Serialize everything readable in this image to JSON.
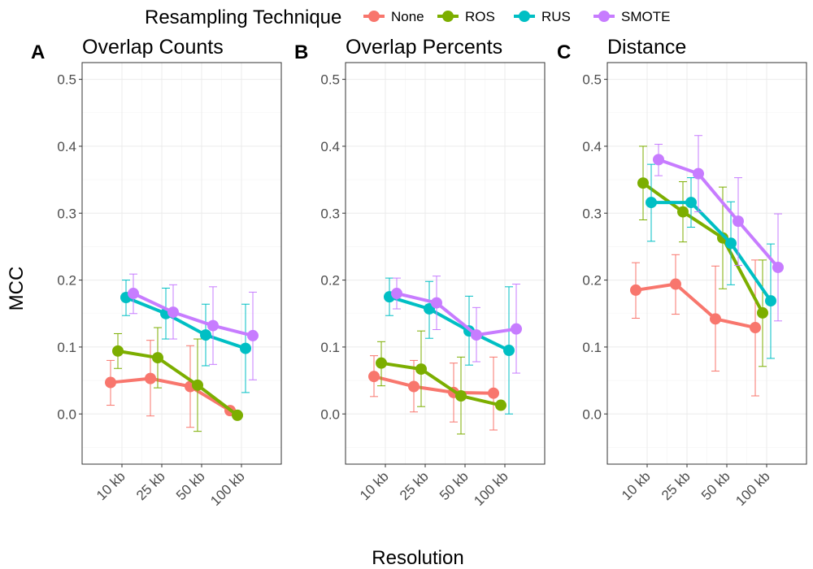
{
  "legend": {
    "title": "Resampling Technique",
    "position": "top"
  },
  "xlabel": "Resolution",
  "ylabel": "MCC",
  "colors": {
    "None": "#F8766D",
    "ROS": "#7CAE00",
    "RUS": "#00BFC4",
    "SMOTE": "#C77CFF"
  },
  "chart_data": [
    {
      "type": "line",
      "tag": "A",
      "title": "Overlap Counts",
      "categories": [
        "10 kb",
        "25 kb",
        "50 kb",
        "100 kb"
      ],
      "ylim": [
        -0.075,
        0.525
      ],
      "yticks": [
        0.0,
        0.1,
        0.2,
        0.3,
        0.4,
        0.5
      ],
      "ytick_labels": [
        "0.0",
        "0.1",
        "0.2",
        "0.3",
        "0.4",
        "0.5"
      ],
      "grid": true,
      "series": [
        {
          "name": "None",
          "values": [
            0.047,
            0.053,
            0.041,
            0.005
          ],
          "lower": [
            0.013,
            -0.003,
            -0.02,
            0.004
          ],
          "upper": [
            0.08,
            0.11,
            0.102,
            0.006
          ]
        },
        {
          "name": "ROS",
          "values": [
            0.094,
            0.084,
            0.043,
            -0.002
          ],
          "lower": [
            0.068,
            0.039,
            -0.026,
            -0.003
          ],
          "upper": [
            0.12,
            0.129,
            0.112,
            -0.001
          ]
        },
        {
          "name": "RUS",
          "values": [
            0.174,
            0.15,
            0.118,
            0.098
          ],
          "lower": [
            0.147,
            0.112,
            0.072,
            0.032
          ],
          "upper": [
            0.2,
            0.188,
            0.164,
            0.164
          ]
        },
        {
          "name": "SMOTE",
          "values": [
            0.18,
            0.152,
            0.132,
            0.117
          ],
          "lower": [
            0.15,
            0.112,
            0.074,
            0.051
          ],
          "upper": [
            0.209,
            0.193,
            0.19,
            0.182
          ]
        }
      ]
    },
    {
      "type": "line",
      "tag": "B",
      "title": "Overlap Percents",
      "categories": [
        "10 kb",
        "25 kb",
        "50 kb",
        "100 kb"
      ],
      "ylim": [
        -0.075,
        0.525
      ],
      "yticks": [
        0.0,
        0.1,
        0.2,
        0.3,
        0.4,
        0.5
      ],
      "ytick_labels": [
        "0.0",
        "0.1",
        "0.2",
        "0.3",
        "0.4",
        "0.5"
      ],
      "grid": true,
      "series": [
        {
          "name": "None",
          "values": [
            0.056,
            0.041,
            0.032,
            0.031
          ],
          "lower": [
            0.026,
            0.003,
            -0.012,
            -0.024
          ],
          "upper": [
            0.087,
            0.08,
            0.076,
            0.085
          ]
        },
        {
          "name": "ROS",
          "values": [
            0.076,
            0.067,
            0.027,
            0.013
          ],
          "lower": [
            0.042,
            0.011,
            -0.03,
            0.012
          ],
          "upper": [
            0.108,
            0.124,
            0.085,
            0.014
          ]
        },
        {
          "name": "RUS",
          "values": [
            0.175,
            0.157,
            0.124,
            0.095
          ],
          "lower": [
            0.147,
            0.113,
            0.073,
            0.0
          ],
          "upper": [
            0.203,
            0.198,
            0.176,
            0.19
          ]
        },
        {
          "name": "SMOTE",
          "values": [
            0.18,
            0.166,
            0.118,
            0.127
          ],
          "lower": [
            0.157,
            0.126,
            0.078,
            0.061
          ],
          "upper": [
            0.203,
            0.206,
            0.159,
            0.194
          ]
        }
      ]
    },
    {
      "type": "line",
      "tag": "C",
      "title": "Distance",
      "categories": [
        "10 kb",
        "25 kb",
        "50 kb",
        "100 kb"
      ],
      "ylim": [
        -0.075,
        0.525
      ],
      "yticks": [
        0.0,
        0.1,
        0.2,
        0.3,
        0.4,
        0.5
      ],
      "ytick_labels": [
        "0.0",
        "0.1",
        "0.2",
        "0.3",
        "0.4",
        "0.5"
      ],
      "grid": true,
      "series": [
        {
          "name": "None",
          "values": [
            0.185,
            0.194,
            0.142,
            0.129
          ],
          "lower": [
            0.143,
            0.149,
            0.064,
            0.027
          ],
          "upper": [
            0.226,
            0.238,
            0.221,
            0.23
          ]
        },
        {
          "name": "ROS",
          "values": [
            0.345,
            0.302,
            0.263,
            0.151
          ],
          "lower": [
            0.29,
            0.257,
            0.187,
            0.071
          ],
          "upper": [
            0.4,
            0.347,
            0.339,
            0.23
          ]
        },
        {
          "name": "RUS",
          "values": [
            0.316,
            0.316,
            0.255,
            0.169
          ],
          "lower": [
            0.258,
            0.279,
            0.193,
            0.083
          ],
          "upper": [
            0.373,
            0.353,
            0.317,
            0.254
          ]
        },
        {
          "name": "SMOTE",
          "values": [
            0.38,
            0.359,
            0.288,
            0.219
          ],
          "lower": [
            0.356,
            0.302,
            0.222,
            0.139
          ],
          "upper": [
            0.403,
            0.416,
            0.353,
            0.299
          ]
        }
      ]
    }
  ]
}
